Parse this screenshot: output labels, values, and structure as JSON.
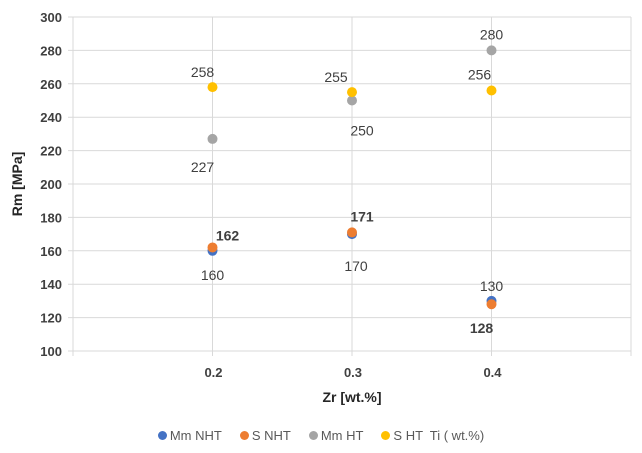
{
  "chart_data": {
    "type": "scatter",
    "title": "",
    "xlabel": "Zr [wt.%]",
    "ylabel": "Rm [MPa]",
    "xlim": [
      0.1,
      0.5
    ],
    "ylim": [
      100,
      300
    ],
    "x_ticks": [
      0.1,
      0.2,
      0.3,
      0.4,
      0.5
    ],
    "x_tick_labels": [
      "",
      "0.2",
      "0.3",
      "0.4",
      ""
    ],
    "y_ticks": [
      100,
      120,
      140,
      160,
      180,
      200,
      220,
      240,
      260,
      280,
      300
    ],
    "y_tick_labels": [
      "100",
      "120",
      "140",
      "160",
      "180",
      "200",
      "220",
      "240",
      "260",
      "280",
      "300"
    ],
    "grid": true,
    "legend_position": "bottom",
    "series": [
      {
        "name": "Mm NHT",
        "color": "#4472c4",
        "x": [
          0.2,
          0.3,
          0.4
        ],
        "y": [
          160,
          170,
          130
        ],
        "labels": [
          "160",
          "170",
          "130"
        ],
        "label_color": "#404040",
        "label_bold": false
      },
      {
        "name": "S NHT",
        "color": "#ed7d31",
        "x": [
          0.2,
          0.3,
          0.4
        ],
        "y": [
          162,
          171,
          128
        ],
        "labels": [
          "162",
          "171",
          "128"
        ],
        "label_color": "#c55a11",
        "label_bold": true
      },
      {
        "name": "Mm HT",
        "color": "#a5a5a5",
        "x": [
          0.2,
          0.3,
          0.4
        ],
        "y": [
          227,
          250,
          280
        ],
        "labels": [
          "227",
          "250",
          "280"
        ],
        "label_color": "#404040",
        "label_bold": false
      },
      {
        "name": "S HT  Ti ( wt.%)",
        "color": "#ffc000",
        "x": [
          0.2,
          0.3,
          0.4
        ],
        "y": [
          258,
          255,
          256
        ],
        "labels": [
          "258",
          "255",
          "256"
        ],
        "label_color": "#404040",
        "label_bold": false
      }
    ]
  }
}
